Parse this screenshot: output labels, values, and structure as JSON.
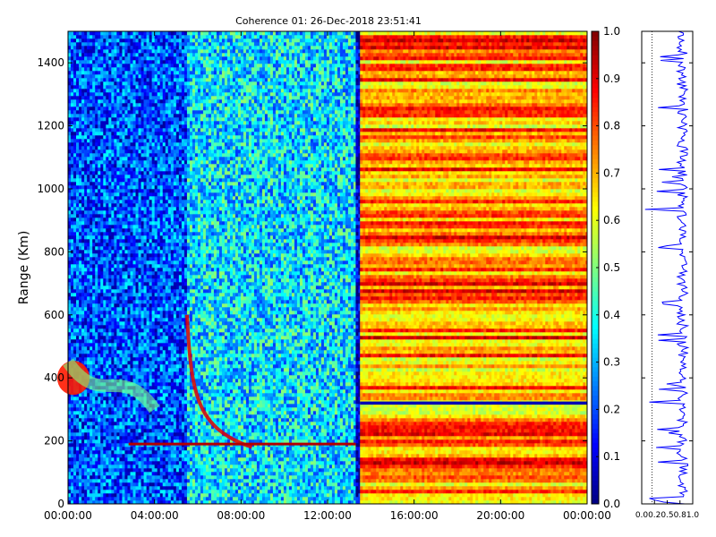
{
  "chart_data": [
    {
      "type": "heatmap",
      "title": "Coherence 01: 26-Dec-2018 23:51:41",
      "ylabel": "Range (Km)",
      "xlabel": "",
      "x_ticks": [
        "00:00:00",
        "04:00:00",
        "08:00:00",
        "12:00:00",
        "16:00:00",
        "20:00:00",
        "00:00:00"
      ],
      "x_range_hours": [
        0,
        24
      ],
      "y_ticks": [
        0,
        200,
        400,
        600,
        800,
        1000,
        1200,
        1400
      ],
      "ylim": [
        0,
        1500
      ],
      "colormap": "jet",
      "colorbar": {
        "ticks": [
          "0.0",
          "0.1",
          "0.2",
          "0.3",
          "0.4",
          "0.5",
          "0.6",
          "0.7",
          "0.8",
          "0.9",
          "1.0"
        ],
        "range": [
          0,
          1
        ]
      },
      "regions": [
        {
          "hours": [
            0,
            5.5
          ],
          "level": 0.2
        },
        {
          "hours": [
            5.5,
            13.3
          ],
          "level": 0.35
        },
        {
          "hours": [
            13.3,
            13.5
          ],
          "level": 0.05
        },
        {
          "hours": [
            13.5,
            24
          ],
          "level": 0.75
        }
      ],
      "features": [
        {
          "kind": "blob",
          "hours": [
            0,
            0.5
          ],
          "range_km": [
            380,
            420
          ],
          "level": 0.85
        },
        {
          "kind": "arc",
          "hours": [
            0,
            4.0
          ],
          "range_km": [
            300,
            450
          ],
          "level": 0.5
        },
        {
          "kind": "curve",
          "hours": [
            5.5,
            8.5
          ],
          "range_km": [
            180,
            600
          ],
          "level": 0.9
        },
        {
          "kind": "line",
          "hours": [
            2.8,
            13.3
          ],
          "range_km": [
            190,
            190
          ],
          "level": 0.95
        },
        {
          "kind": "band",
          "hours": [
            13.5,
            24
          ],
          "range_km": [
            315,
            325
          ],
          "level": 0.05
        }
      ]
    },
    {
      "type": "line",
      "x_ticks": [
        "0.0",
        "0.2",
        "0.5",
        "0.8",
        "1.0"
      ],
      "xlim": [
        0,
        1
      ],
      "ylim": [
        0,
        1500
      ],
      "dotted_reference_x": 0.2,
      "mean_level": 0.8,
      "series_color": "#0000ff"
    }
  ]
}
